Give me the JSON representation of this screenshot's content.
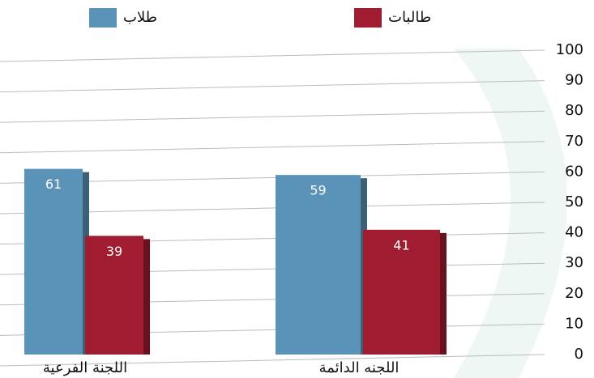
{
  "chart_data": {
    "type": "bar",
    "categories": [
      "اللجنة الفرعية",
      "اللجنه الدائمة"
    ],
    "series": [
      {
        "name": "طلاب",
        "color": "#5b93b8",
        "values": [
          61,
          59
        ]
      },
      {
        "name": "طالبات",
        "color": "#a01c30",
        "values": [
          39,
          41
        ]
      }
    ],
    "ylim": [
      0,
      100
    ],
    "yticks": [
      0,
      10,
      20,
      30,
      40,
      50,
      60,
      70,
      80,
      90,
      100
    ],
    "grid": true,
    "legend": "top"
  }
}
